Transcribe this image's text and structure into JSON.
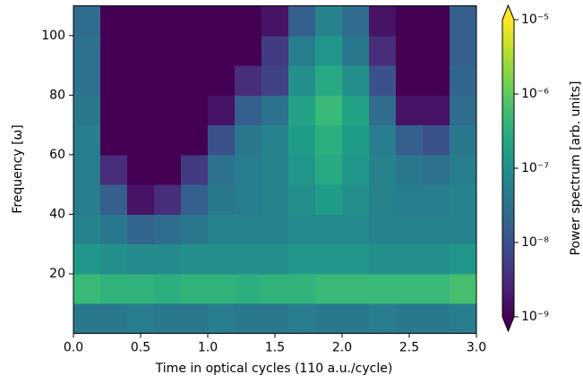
{
  "chart_data": {
    "type": "heatmap",
    "xlabel": "Time in optical cycles (110 a.u./cycle)",
    "ylabel": "Frequency [ω]",
    "colorbar_label": "Power spectrum [arb. units]",
    "colormap": "viridis",
    "color_log": true,
    "colorbar_extend": "both",
    "xlim": [
      0,
      3
    ],
    "ylim": [
      0,
      110
    ],
    "xticks": [
      {
        "value": 0,
        "label": "0.0"
      },
      0.5,
      {
        "value": 1,
        "label": "1.0"
      },
      1.5,
      {
        "value": 2,
        "label": "2.0"
      },
      2.5,
      {
        "value": 3,
        "label": "3.0"
      }
    ],
    "yticks": [
      20,
      40,
      60,
      80,
      100
    ],
    "clim": [
      1e-09,
      1e-05
    ],
    "cticks": [
      {
        "value": 1e-09,
        "label": "10⁻⁹"
      },
      {
        "value": 1e-08,
        "label": "10⁻⁸"
      },
      {
        "value": 1e-07,
        "label": "10⁻⁷"
      },
      {
        "value": 1e-06,
        "label": "10⁻⁶"
      },
      {
        "value": 1e-05,
        "label": "10⁻⁵"
      }
    ],
    "xbins": [
      0,
      0.2,
      0.4,
      0.6,
      0.8,
      1.0,
      1.2,
      1.4,
      1.6,
      1.8,
      2.0,
      2.2,
      2.4,
      2.6,
      2.8,
      3.0
    ],
    "ybins": [
      0,
      10,
      20,
      30,
      40,
      50,
      60,
      70,
      80,
      90,
      100,
      110
    ],
    "z": [
      [
        4e-08,
        4e-08,
        5e-08,
        4e-08,
        4e-08,
        5e-08,
        4e-08,
        4e-08,
        5e-08,
        4e-08,
        4e-08,
        5e-08,
        4e-08,
        4e-08,
        5e-08
      ],
      [
        5e-07,
        4e-07,
        4e-07,
        3.2e-07,
        4e-07,
        4e-07,
        3.2e-07,
        4e-07,
        4e-07,
        5e-07,
        5e-07,
        5e-07,
        5e-07,
        5e-07,
        6.3e-07
      ],
      [
        1.3e-07,
        1e-07,
        8e-08,
        8e-08,
        1e-07,
        1e-07,
        1e-07,
        1e-07,
        1.3e-07,
        1.3e-07,
        1.3e-07,
        1e-07,
        1e-07,
        1e-07,
        1.3e-07
      ],
      [
        6.3e-08,
        4e-08,
        2e-08,
        2.5e-08,
        4e-08,
        6.3e-08,
        6.3e-08,
        6.3e-08,
        8e-08,
        8e-08,
        8e-08,
        6.3e-08,
        6.3e-08,
        6.3e-08,
        6.3e-08
      ],
      [
        5e-08,
        1.6e-08,
        1.6e-09,
        3.2e-09,
        1.6e-08,
        4e-08,
        5e-08,
        6.3e-08,
        1e-07,
        1.6e-07,
        1e-07,
        6.3e-08,
        5e-08,
        5e-08,
        6.3e-08
      ],
      [
        5e-08,
        3.2e-09,
        1e-09,
        1e-09,
        5e-09,
        3.2e-08,
        5e-08,
        6.3e-08,
        1.3e-07,
        2.5e-07,
        1.3e-07,
        6.3e-08,
        4e-08,
        3.2e-08,
        5e-08
      ],
      [
        5e-08,
        1e-09,
        1e-09,
        1e-09,
        1e-09,
        1e-08,
        4e-08,
        6.3e-08,
        1.6e-07,
        3.2e-07,
        1.6e-07,
        5e-08,
        1.6e-08,
        1e-08,
        4e-08
      ],
      [
        4e-08,
        1e-09,
        1e-09,
        1e-09,
        1e-09,
        1.6e-09,
        1.6e-08,
        3.2e-08,
        2e-07,
        5e-07,
        2e-07,
        2.5e-08,
        1.6e-09,
        1.6e-09,
        2.5e-08
      ],
      [
        3.2e-08,
        1e-09,
        1e-09,
        1e-09,
        1e-09,
        1e-09,
        3.2e-09,
        6.3e-09,
        1e-07,
        2.5e-07,
        1e-07,
        1e-08,
        1e-09,
        1e-09,
        2e-08
      ],
      [
        3.2e-08,
        1e-09,
        1e-09,
        1e-09,
        1e-09,
        1e-09,
        1e-09,
        5e-09,
        5e-08,
        1.3e-07,
        4e-08,
        3.2e-09,
        1e-09,
        1e-09,
        1.6e-08
      ],
      [
        2.5e-08,
        1e-09,
        1e-09,
        1e-09,
        1e-09,
        1e-09,
        1e-09,
        1.6e-09,
        1.6e-08,
        6.3e-08,
        2.5e-08,
        1.6e-09,
        1e-09,
        1e-09,
        1.6e-08
      ]
    ]
  }
}
